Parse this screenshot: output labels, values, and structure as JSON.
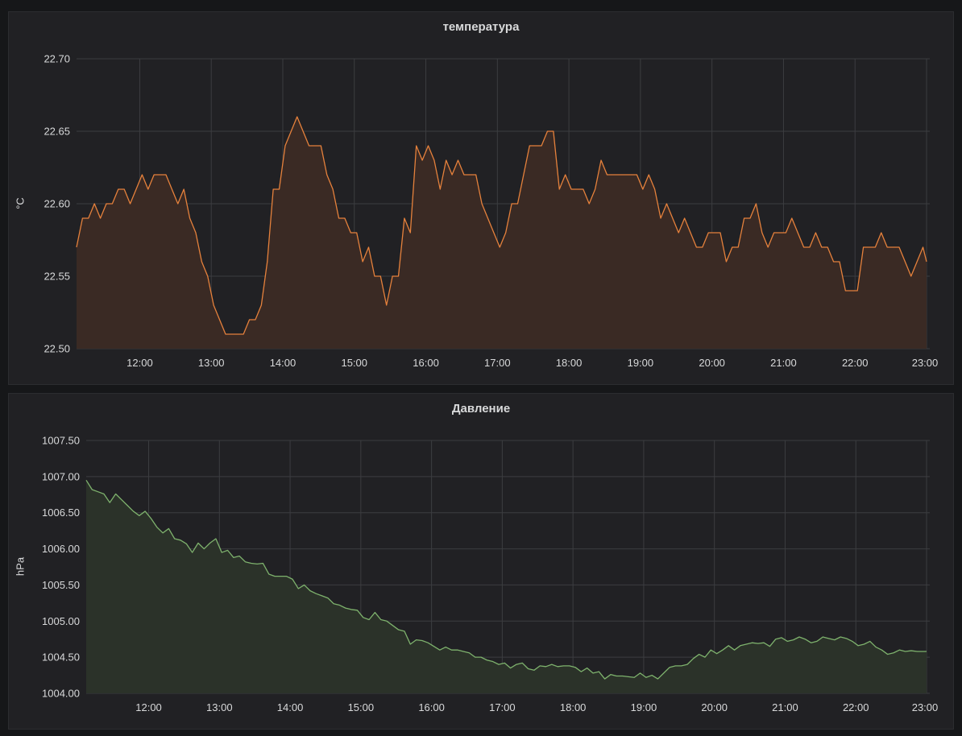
{
  "chart_data": [
    {
      "type": "area",
      "title": "температура",
      "ylabel": "°C",
      "xlabel": "",
      "ylim": [
        22.5,
        22.7
      ],
      "y_ticks": [
        "22.50",
        "22.55",
        "22.60",
        "22.65",
        "22.70"
      ],
      "x_ticks": [
        "12:00",
        "13:00",
        "14:00",
        "15:00",
        "16:00",
        "17:00",
        "18:00",
        "19:00",
        "20:00",
        "21:00",
        "22:00",
        "23:00"
      ],
      "xlim": [
        "11:07",
        "23:00"
      ],
      "grid": true,
      "line_color": "#e5813c",
      "fill_color": "#3a2a24",
      "series": [
        {
          "x": [
            "11:07",
            "11:12",
            "11:17",
            "11:22",
            "11:27",
            "11:32",
            "11:37",
            "11:42",
            "11:47",
            "11:52",
            "11:57",
            "12:02",
            "12:07",
            "12:12",
            "12:17",
            "12:22",
            "12:27",
            "12:32",
            "12:37",
            "12:42",
            "12:47",
            "12:52",
            "12:57",
            "13:02",
            "13:07",
            "13:12",
            "13:17",
            "13:22",
            "13:27",
            "13:32",
            "13:37",
            "13:42",
            "13:47",
            "13:52",
            "13:57",
            "14:02",
            "14:07",
            "14:12",
            "14:17",
            "14:22",
            "14:27",
            "14:32",
            "14:37",
            "14:42",
            "14:47",
            "14:52",
            "14:57",
            "15:02",
            "15:07",
            "15:12",
            "15:17",
            "15:22",
            "15:27",
            "15:32",
            "15:37",
            "15:42",
            "15:47",
            "15:52",
            "15:57",
            "16:02",
            "16:07",
            "16:12",
            "16:17",
            "16:22",
            "16:27",
            "16:32",
            "16:37",
            "16:42",
            "16:47",
            "16:52",
            "16:57",
            "17:02",
            "17:07",
            "17:12",
            "17:17",
            "17:22",
            "17:27",
            "17:32",
            "17:37",
            "17:42",
            "17:47",
            "17:52",
            "17:57",
            "18:02",
            "18:07",
            "18:12",
            "18:17",
            "18:22",
            "18:27",
            "18:32",
            "18:37",
            "18:42",
            "18:47",
            "18:52",
            "18:57",
            "19:02",
            "19:07",
            "19:12",
            "19:17",
            "19:22",
            "19:27",
            "19:32",
            "19:37",
            "19:42",
            "19:47",
            "19:52",
            "19:57",
            "20:02",
            "20:07",
            "20:12",
            "20:17",
            "20:22",
            "20:27",
            "20:32",
            "20:37",
            "20:42",
            "20:47",
            "20:52",
            "20:57",
            "21:02",
            "21:07",
            "21:12",
            "21:17",
            "21:22",
            "21:27",
            "21:32",
            "21:37",
            "21:42",
            "21:47",
            "21:52",
            "21:57",
            "22:02",
            "22:07",
            "22:12",
            "22:17",
            "22:22",
            "22:27",
            "22:32",
            "22:37",
            "22:42",
            "22:47",
            "22:52",
            "22:57",
            "23:00"
          ],
          "values": [
            22.57,
            22.59,
            22.59,
            22.6,
            22.59,
            22.6,
            22.6,
            22.61,
            22.61,
            22.6,
            22.61,
            22.62,
            22.61,
            22.62,
            22.62,
            22.62,
            22.61,
            22.6,
            22.61,
            22.59,
            22.58,
            22.56,
            22.55,
            22.53,
            22.52,
            22.51,
            22.51,
            22.51,
            22.51,
            22.52,
            22.52,
            22.53,
            22.56,
            22.61,
            22.61,
            22.64,
            22.65,
            22.66,
            22.65,
            22.64,
            22.64,
            22.64,
            22.62,
            22.61,
            22.59,
            22.59,
            22.58,
            22.58,
            22.56,
            22.57,
            22.55,
            22.55,
            22.53,
            22.55,
            22.55,
            22.59,
            22.58,
            22.64,
            22.63,
            22.64,
            22.63,
            22.61,
            22.63,
            22.62,
            22.63,
            22.62,
            22.62,
            22.62,
            22.6,
            22.59,
            22.58,
            22.57,
            22.58,
            22.6,
            22.6,
            22.62,
            22.64,
            22.64,
            22.64,
            22.65,
            22.65,
            22.61,
            22.62,
            22.61,
            22.61,
            22.61,
            22.6,
            22.61,
            22.63,
            22.62,
            22.62,
            22.62,
            22.62,
            22.62,
            22.62,
            22.61,
            22.62,
            22.61,
            22.59,
            22.6,
            22.59,
            22.58,
            22.59,
            22.58,
            22.57,
            22.57,
            22.58,
            22.58,
            22.58,
            22.56,
            22.57,
            22.57,
            22.59,
            22.59,
            22.6,
            22.58,
            22.57,
            22.58,
            22.58,
            22.58,
            22.59,
            22.58,
            22.57,
            22.57,
            22.58,
            22.57,
            22.57,
            22.56,
            22.56,
            22.54,
            22.54,
            22.54,
            22.57,
            22.57,
            22.57,
            22.58,
            22.57,
            22.57,
            22.57,
            22.56,
            22.55,
            22.56,
            22.57,
            22.56
          ]
        }
      ]
    },
    {
      "type": "area",
      "title": "Давление",
      "ylabel": "hPa",
      "xlabel": "",
      "ylim": [
        1004.0,
        1007.5
      ],
      "y_ticks": [
        "1004.00",
        "1004.50",
        "1005.00",
        "1005.50",
        "1006.00",
        "1006.50",
        "1007.00",
        "1007.50"
      ],
      "x_ticks": [
        "12:00",
        "13:00",
        "14:00",
        "15:00",
        "16:00",
        "17:00",
        "18:00",
        "19:00",
        "20:00",
        "21:00",
        "22:00",
        "23:00"
      ],
      "xlim": [
        "11:07",
        "23:00"
      ],
      "grid": true,
      "line_color": "#7eb26d",
      "fill_color": "#2b3229",
      "series": [
        {
          "x": [
            "11:07",
            "11:12",
            "11:17",
            "11:22",
            "11:27",
            "11:32",
            "11:37",
            "11:42",
            "11:47",
            "11:52",
            "11:57",
            "12:02",
            "12:07",
            "12:12",
            "12:17",
            "12:22",
            "12:27",
            "12:32",
            "12:37",
            "12:42",
            "12:47",
            "12:52",
            "12:57",
            "13:02",
            "13:07",
            "13:12",
            "13:17",
            "13:22",
            "13:27",
            "13:32",
            "13:37",
            "13:42",
            "13:47",
            "13:52",
            "13:57",
            "14:02",
            "14:07",
            "14:12",
            "14:17",
            "14:22",
            "14:27",
            "14:32",
            "14:37",
            "14:42",
            "14:47",
            "14:52",
            "14:57",
            "15:02",
            "15:07",
            "15:12",
            "15:17",
            "15:22",
            "15:27",
            "15:32",
            "15:37",
            "15:42",
            "15:47",
            "15:52",
            "15:57",
            "16:02",
            "16:07",
            "16:12",
            "16:17",
            "16:22",
            "16:27",
            "16:32",
            "16:37",
            "16:42",
            "16:47",
            "16:52",
            "16:57",
            "17:02",
            "17:07",
            "17:12",
            "17:17",
            "17:22",
            "17:27",
            "17:32",
            "17:37",
            "17:42",
            "17:47",
            "17:52",
            "17:57",
            "18:02",
            "18:07",
            "18:12",
            "18:17",
            "18:22",
            "18:27",
            "18:32",
            "18:37",
            "18:42",
            "18:47",
            "18:52",
            "18:57",
            "19:02",
            "19:07",
            "19:12",
            "19:17",
            "19:22",
            "19:27",
            "19:32",
            "19:37",
            "19:42",
            "19:47",
            "19:52",
            "19:57",
            "20:02",
            "20:07",
            "20:12",
            "20:17",
            "20:22",
            "20:27",
            "20:32",
            "20:37",
            "20:42",
            "20:47",
            "20:52",
            "20:57",
            "21:02",
            "21:07",
            "21:12",
            "21:17",
            "21:22",
            "21:27",
            "21:32",
            "21:37",
            "21:42",
            "21:47",
            "21:52",
            "21:57",
            "22:02",
            "22:07",
            "22:12",
            "22:17",
            "22:22",
            "22:27",
            "22:32",
            "22:37",
            "22:42",
            "22:47",
            "22:52",
            "22:57",
            "23:00"
          ],
          "values": [
            1006.95,
            1006.82,
            1006.79,
            1006.76,
            1006.64,
            1006.76,
            1006.68,
            1006.6,
            1006.52,
            1006.46,
            1006.52,
            1006.42,
            1006.3,
            1006.22,
            1006.28,
            1006.14,
            1006.12,
            1006.07,
            1005.95,
            1006.08,
            1006.0,
            1006.08,
            1006.14,
            1005.95,
            1005.98,
            1005.88,
            1005.9,
            1005.82,
            1005.8,
            1005.79,
            1005.8,
            1005.65,
            1005.62,
            1005.62,
            1005.62,
            1005.58,
            1005.45,
            1005.5,
            1005.42,
            1005.38,
            1005.35,
            1005.32,
            1005.24,
            1005.22,
            1005.18,
            1005.16,
            1005.15,
            1005.05,
            1005.02,
            1005.12,
            1005.02,
            1005.0,
            1004.94,
            1004.88,
            1004.86,
            1004.68,
            1004.74,
            1004.73,
            1004.7,
            1004.65,
            1004.6,
            1004.64,
            1004.6,
            1004.6,
            1004.58,
            1004.56,
            1004.5,
            1004.5,
            1004.46,
            1004.44,
            1004.4,
            1004.42,
            1004.35,
            1004.4,
            1004.42,
            1004.34,
            1004.32,
            1004.38,
            1004.37,
            1004.4,
            1004.37,
            1004.38,
            1004.38,
            1004.36,
            1004.3,
            1004.35,
            1004.28,
            1004.3,
            1004.2,
            1004.26,
            1004.24,
            1004.24,
            1004.23,
            1004.22,
            1004.28,
            1004.22,
            1004.25,
            1004.2,
            1004.28,
            1004.36,
            1004.38,
            1004.38,
            1004.4,
            1004.48,
            1004.54,
            1004.5,
            1004.6,
            1004.55,
            1004.6,
            1004.66,
            1004.6,
            1004.66,
            1004.68,
            1004.7,
            1004.69,
            1004.7,
            1004.65,
            1004.75,
            1004.77,
            1004.72,
            1004.74,
            1004.78,
            1004.75,
            1004.7,
            1004.72,
            1004.78,
            1004.76,
            1004.74,
            1004.78,
            1004.76,
            1004.72,
            1004.66,
            1004.68,
            1004.72,
            1004.64,
            1004.6,
            1004.54,
            1004.56,
            1004.6,
            1004.58,
            1004.59,
            1004.58,
            1004.58,
            1004.58
          ]
        }
      ]
    }
  ]
}
